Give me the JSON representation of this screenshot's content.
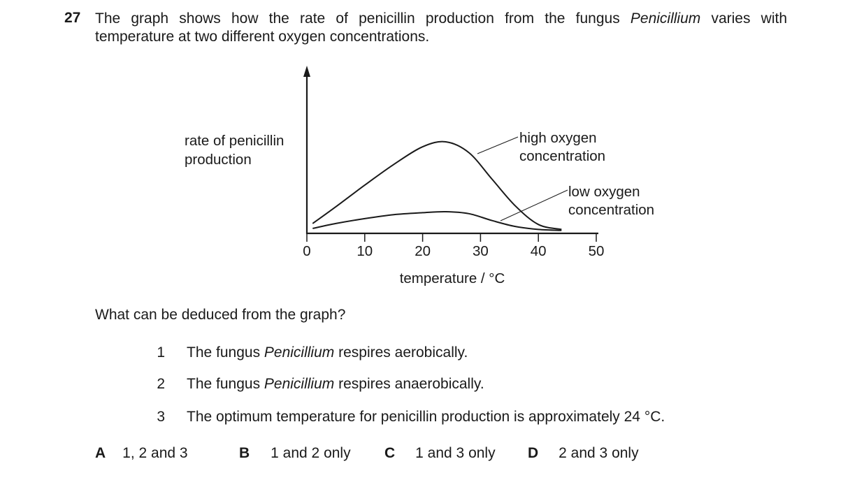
{
  "question": {
    "number": "27",
    "stem_line1_a": "The graph shows how the rate of penicillin production from the fungus",
    "stem_species": "Penicillium",
    "stem_line1_b": "varies with",
    "stem_line2": "temperature at two different oxygen concentrations.",
    "prompt": "What can be deduced from the graph?"
  },
  "chart_data": {
    "type": "line",
    "ylabel_line1": "rate of penicillin",
    "ylabel_line2": "production",
    "xlabel": "temperature / °C",
    "xlim": [
      0,
      50
    ],
    "x_ticks": [
      0,
      10,
      20,
      30,
      40,
      50
    ],
    "y_axis_values_shown": false,
    "series": [
      {
        "name_line1": "high oxygen",
        "name_line2": "concentration",
        "x": [
          1,
          5,
          10,
          15,
          20,
          24,
          28,
          32,
          36,
          40,
          44
        ],
        "y": [
          0.1,
          0.27,
          0.49,
          0.7,
          0.88,
          0.93,
          0.82,
          0.55,
          0.28,
          0.09,
          0.04
        ]
      },
      {
        "name_line1": "low oxygen",
        "name_line2": "concentration",
        "x": [
          1,
          5,
          10,
          15,
          20,
          24,
          28,
          32,
          36,
          40,
          44
        ],
        "y": [
          0.05,
          0.1,
          0.15,
          0.19,
          0.21,
          0.22,
          0.2,
          0.13,
          0.07,
          0.04,
          0.03
        ]
      }
    ]
  },
  "statements": [
    {
      "num": "1",
      "pre": "The fungus ",
      "italic": "Penicillium",
      "post": " respires aerobically."
    },
    {
      "num": "2",
      "pre": "The fungus ",
      "italic": "Penicillium",
      "post": " respires anaerobically."
    },
    {
      "num": "3",
      "pre": "The optimum temperature for penicillin production is approximately 24 °C.",
      "italic": "",
      "post": ""
    }
  ],
  "options": [
    {
      "letter": "A",
      "text": "1, 2 and 3"
    },
    {
      "letter": "B",
      "text": "1 and 2 only"
    },
    {
      "letter": "C",
      "text": "1 and 3 only"
    },
    {
      "letter": "D",
      "text": "2 and 3 only"
    }
  ]
}
